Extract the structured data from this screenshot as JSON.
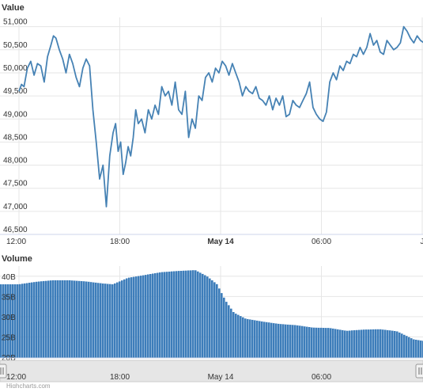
{
  "chart_data": [
    {
      "type": "line",
      "title": "Value",
      "ylim": [
        46500,
        51200
      ],
      "yticks": [
        {
          "value": 46500,
          "label": "46,500"
        },
        {
          "value": 47000,
          "label": "47,000"
        },
        {
          "value": 47500,
          "label": "47,500"
        },
        {
          "value": 48000,
          "label": "48,000"
        },
        {
          "value": 48500,
          "label": "48,500"
        },
        {
          "value": 49000,
          "label": "49,000"
        },
        {
          "value": 49500,
          "label": "49,500"
        },
        {
          "value": 50000,
          "label": "50,000"
        },
        {
          "value": 50500,
          "label": "50,500"
        },
        {
          "value": 51000,
          "label": "51,000"
        }
      ],
      "xticks": [
        {
          "label": "12:00",
          "hour": 0,
          "bold": false
        },
        {
          "label": "18:00",
          "hour": 6,
          "bold": false
        },
        {
          "label": "May 14",
          "hour": 12,
          "bold": true
        },
        {
          "label": "06:00",
          "hour": 18,
          "bold": false
        },
        {
          "label": "J",
          "hour": 24,
          "bold": false
        }
      ],
      "color": "#4682b4",
      "x_hours": [
        0,
        0.15,
        0.3,
        0.5,
        0.7,
        0.9,
        1.1,
        1.3,
        1.5,
        1.7,
        1.9,
        2.05,
        2.2,
        2.4,
        2.6,
        2.8,
        3.0,
        3.2,
        3.4,
        3.6,
        3.8,
        4.0,
        4.2,
        4.4,
        4.6,
        4.8,
        5.0,
        5.2,
        5.4,
        5.6,
        5.75,
        5.9,
        6.05,
        6.2,
        6.35,
        6.5,
        6.65,
        6.8,
        6.95,
        7.1,
        7.3,
        7.5,
        7.7,
        7.9,
        8.1,
        8.3,
        8.5,
        8.7,
        8.9,
        9.1,
        9.3,
        9.5,
        9.7,
        9.9,
        10.1,
        10.3,
        10.5,
        10.7,
        10.9,
        11.1,
        11.3,
        11.5,
        11.7,
        11.9,
        12.1,
        12.3,
        12.5,
        12.7,
        12.9,
        13.1,
        13.3,
        13.5,
        13.7,
        13.9,
        14.1,
        14.3,
        14.5,
        14.7,
        14.9,
        15.1,
        15.3,
        15.5,
        15.7,
        15.9,
        16.1,
        16.3,
        16.5,
        16.7,
        16.9,
        17.1,
        17.3,
        17.5,
        17.7,
        17.9,
        18.1,
        18.3,
        18.5,
        18.7,
        18.9,
        19.1,
        19.3,
        19.5,
        19.7,
        19.9,
        20.1,
        20.3,
        20.5,
        20.7,
        20.9,
        21.1,
        21.3,
        21.5,
        21.7,
        21.9,
        22.1,
        22.3,
        22.5,
        22.7,
        22.9,
        23.1,
        23.3,
        23.5,
        23.7,
        23.9,
        24.1
      ],
      "values": [
        49600,
        49750,
        49700,
        50100,
        50250,
        49950,
        50200,
        50150,
        49800,
        50350,
        50600,
        50800,
        50750,
        50500,
        50300,
        50000,
        50400,
        50200,
        49900,
        49700,
        50100,
        50300,
        50150,
        49200,
        48500,
        47700,
        48000,
        47100,
        48200,
        48700,
        48900,
        48300,
        48500,
        47800,
        48050,
        48400,
        48200,
        48600,
        49200,
        48900,
        49000,
        48700,
        49200,
        49000,
        49300,
        49100,
        49700,
        49500,
        49600,
        49300,
        49800,
        49200,
        49100,
        49600,
        48600,
        49000,
        48800,
        49500,
        49400,
        49900,
        50000,
        49800,
        50100,
        50000,
        50250,
        50150,
        49950,
        50200,
        50000,
        49800,
        49500,
        49700,
        49600,
        49550,
        49700,
        49450,
        49400,
        49300,
        49500,
        49200,
        49450,
        49300,
        49500,
        49050,
        49100,
        49400,
        49300,
        49250,
        49400,
        49550,
        49800,
        49250,
        49100,
        49000,
        48950,
        49150,
        49800,
        50000,
        49850,
        50150,
        50050,
        50250,
        50200,
        50400,
        50350,
        50550,
        50400,
        50550,
        50850,
        50600,
        50700,
        50450,
        50400,
        50700,
        50600,
        50500,
        50550,
        50650,
        51000,
        50900,
        50750,
        50650,
        50800,
        50700,
        50650
      ],
      "credit": "Highcharts.com"
    },
    {
      "type": "area",
      "title": "Volume",
      "ylim": [
        19800000000,
        42500000000
      ],
      "yticks": [
        {
          "value": 20000000000,
          "label": "20B"
        },
        {
          "value": 25000000000,
          "label": "25B"
        },
        {
          "value": 30000000000,
          "label": "30B"
        },
        {
          "value": 35000000000,
          "label": "35B"
        },
        {
          "value": 40000000000,
          "label": "40B"
        }
      ],
      "xticks": [
        {
          "label": "12:00",
          "hour": 0,
          "bold": false
        },
        {
          "label": "18:00",
          "hour": 6,
          "bold": false
        },
        {
          "label": "May 14",
          "hour": 12,
          "bold": true
        },
        {
          "label": "06:00",
          "hour": 18,
          "bold": false
        }
      ],
      "color": "#3d7dba",
      "x_hours": [
        0,
        1,
        2,
        3,
        4,
        5,
        5.6,
        6.5,
        7.5,
        8.5,
        9.5,
        10.5,
        11.2,
        11.8,
        12.3,
        12.8,
        13.5,
        14.5,
        15.5,
        16.5,
        17.5,
        18.5,
        19.5,
        20.5,
        21.5,
        22.5,
        23.5,
        24.1
      ],
      "values": [
        38000000000,
        38600000000,
        39000000000,
        39000000000,
        38700000000,
        38200000000,
        38000000000,
        39600000000,
        40300000000,
        41000000000,
        41300000000,
        41500000000,
        40000000000,
        38000000000,
        34000000000,
        31000000000,
        29500000000,
        28800000000,
        28200000000,
        27900000000,
        27300000000,
        27200000000,
        26500000000,
        26800000000,
        26900000000,
        26400000000,
        24400000000,
        24000000000
      ]
    }
  ]
}
